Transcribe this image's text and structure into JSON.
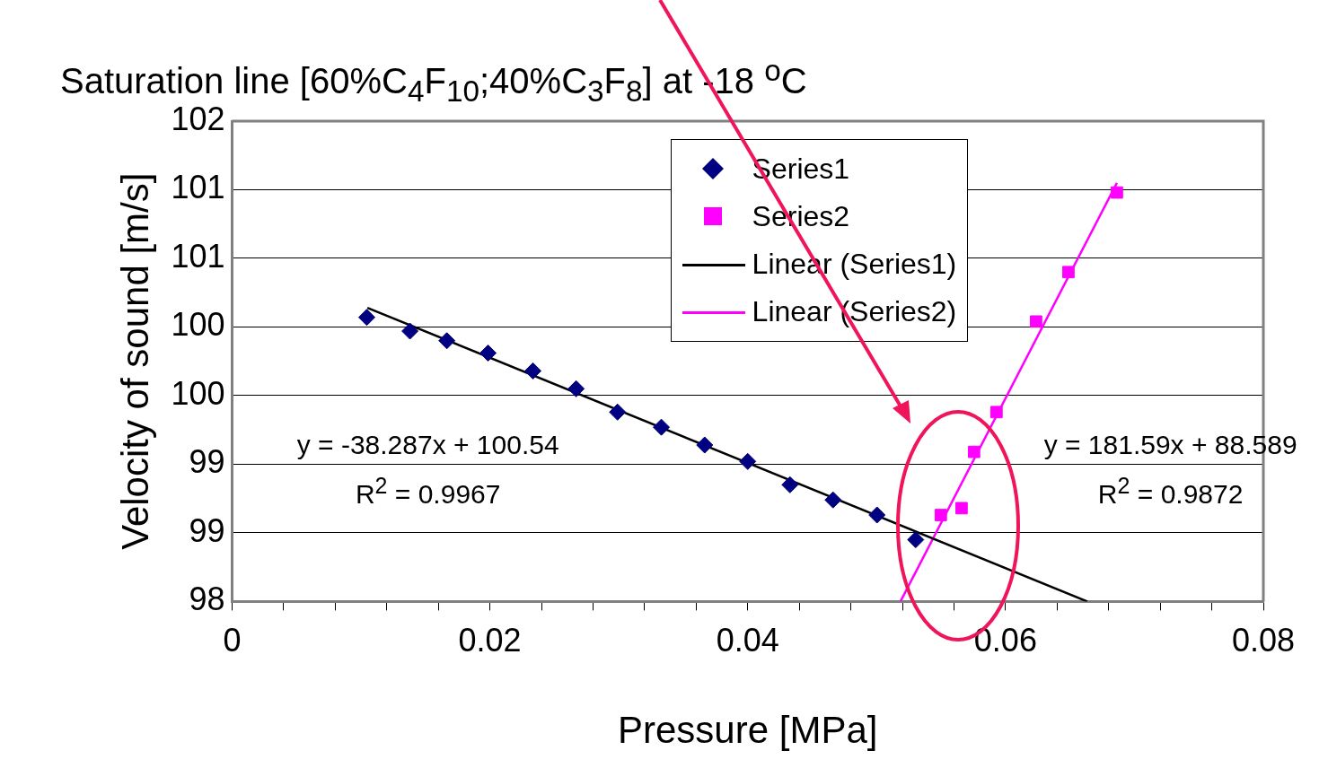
{
  "chart_data": {
    "type": "scatter",
    "title": "Saturation line [60%C$_{4}$F$_{10}$;40%C$_{3}$F$_{8}$] at -18 $^{o}$C",
    "xlabel": "Pressure [MPa]",
    "ylabel": "Velocity of sound [m/s]",
    "xlim": [
      0,
      0.08
    ],
    "ylim": [
      98,
      101.5
    ],
    "xticks": [
      0,
      {
        "value": 0.004,
        "label": null
      },
      {
        "value": 0.008,
        "label": null
      },
      {
        "value": 0.012,
        "label": null
      },
      {
        "value": 0.016,
        "label": null
      },
      0.02,
      {
        "value": 0.024,
        "label": null
      },
      {
        "value": 0.028,
        "label": null
      },
      {
        "value": 0.032,
        "label": null
      },
      {
        "value": 0.036,
        "label": null
      },
      0.04,
      {
        "value": 0.044,
        "label": null
      },
      {
        "value": 0.048,
        "label": null
      },
      {
        "value": 0.052,
        "label": null
      },
      {
        "value": 0.056,
        "label": null
      },
      0.06,
      {
        "value": 0.064,
        "label": null
      },
      {
        "value": 0.068,
        "label": null
      },
      {
        "value": 0.072,
        "label": null
      },
      {
        "value": 0.076,
        "label": null
      },
      0.08
    ],
    "yticks": [
      98,
      {
        "value": 98.5,
        "label": "99"
      },
      99,
      {
        "value": 99.5,
        "label": "100"
      },
      100,
      {
        "value": 100.5,
        "label": "101"
      },
      101,
      {
        "value": 101.5,
        "label": "102"
      }
    ],
    "grid": "y",
    "legend": "top right",
    "series": [
      {
        "name": "Series1",
        "marker": "diamond",
        "color": "#000080",
        "x": [
          0.01045,
          0.0138,
          0.01666,
          0.01986,
          0.02334,
          0.02669,
          0.0299,
          0.0333,
          0.03666,
          0.04,
          0.04328,
          0.04662,
          0.05003,
          0.05303
        ],
        "values": [
          100.07,
          99.97,
          99.9,
          99.81,
          99.68,
          99.55,
          99.38,
          99.27,
          99.14,
          99.02,
          98.85,
          98.74,
          98.63,
          98.45
        ]
      },
      {
        "name": "Series2",
        "marker": "square",
        "color": "#ff00ff",
        "x": [
          0.05498,
          0.05659,
          0.05756,
          0.0593,
          0.06237,
          0.06488,
          0.06864
        ],
        "values": [
          98.63,
          98.68,
          99.09,
          99.38,
          100.04,
          100.4,
          100.98
        ]
      },
      {
        "name": "Linear (Series1)",
        "type": "line",
        "marker": "none",
        "color": "#000000",
        "x": [
          0.0105,
          0.06634
        ],
        "values": [
          100.14,
          98
        ]
      },
      {
        "name": "Linear (Series2)",
        "type": "line",
        "marker": "none",
        "color": "#ff00ff",
        "x": [
          0.05185,
          0.06864
        ],
        "values": [
          98,
          101.05
        ]
      }
    ],
    "annotations": [
      "y = -38.287x + 100.54",
      "R$^{2}$ = 0.9967",
      "y = 181.59x + 88.589",
      "R$^{2}$ = 0.9872"
    ]
  }
}
